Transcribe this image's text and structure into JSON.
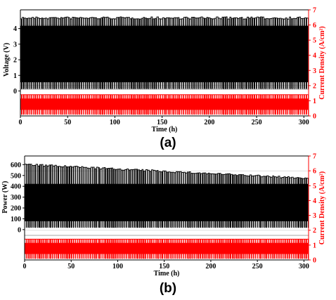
{
  "colors": {
    "voltage": "#000000",
    "current": "#ff0000",
    "grid": "#cccccc"
  },
  "panels": [
    {
      "label": "(a)",
      "chart_data": {
        "type": "line",
        "xlabel": "Time (h)",
        "xlim": [
          0,
          305
        ],
        "xticks": [
          0,
          50,
          100,
          150,
          200,
          250,
          300
        ],
        "left_axis": {
          "label": "Voltage (V)",
          "ticks": [
            0,
            1,
            2,
            3,
            4
          ],
          "ylim": [
            -1.6,
            5.2
          ]
        },
        "right_axis": {
          "label": "Current Density (A/cm²)",
          "ticks": [
            0,
            1,
            2,
            3,
            4,
            5,
            6,
            7
          ],
          "ylim": [
            0,
            7
          ]
        },
        "series": [
          {
            "axis": "left",
            "color": "#000000",
            "high": 4.75,
            "low": 0.15,
            "x_start": 0,
            "x_end": 305
          },
          {
            "axis": "right",
            "color": "#ff0000",
            "high": 1.4,
            "low": 0.1,
            "x_start": 0,
            "x_end": 305
          }
        ]
      }
    },
    {
      "label": "(b)",
      "chart_data": {
        "type": "line",
        "xlabel": "Time (h)",
        "xlim": [
          0,
          305
        ],
        "xticks": [
          0,
          50,
          100,
          150,
          200,
          250,
          300
        ],
        "left_axis": {
          "label": "Power (W)",
          "ticks": [
            0,
            100,
            200,
            300,
            400,
            500,
            600
          ],
          "ylim": [
            -280,
            680
          ]
        },
        "right_axis": {
          "label": "Current Density (A/cm²)",
          "ticks": [
            0,
            1,
            2,
            3,
            4,
            5,
            6,
            7
          ],
          "ylim": [
            0,
            7
          ]
        },
        "series": [
          {
            "axis": "left",
            "color": "#000000",
            "high_start": 610,
            "high_end": 480,
            "low": 20,
            "x_start": 0,
            "x_end": 305
          },
          {
            "axis": "right",
            "color": "#ff0000",
            "high": 1.4,
            "low": 0.1,
            "x_start": 0,
            "x_end": 305
          }
        ]
      }
    }
  ]
}
